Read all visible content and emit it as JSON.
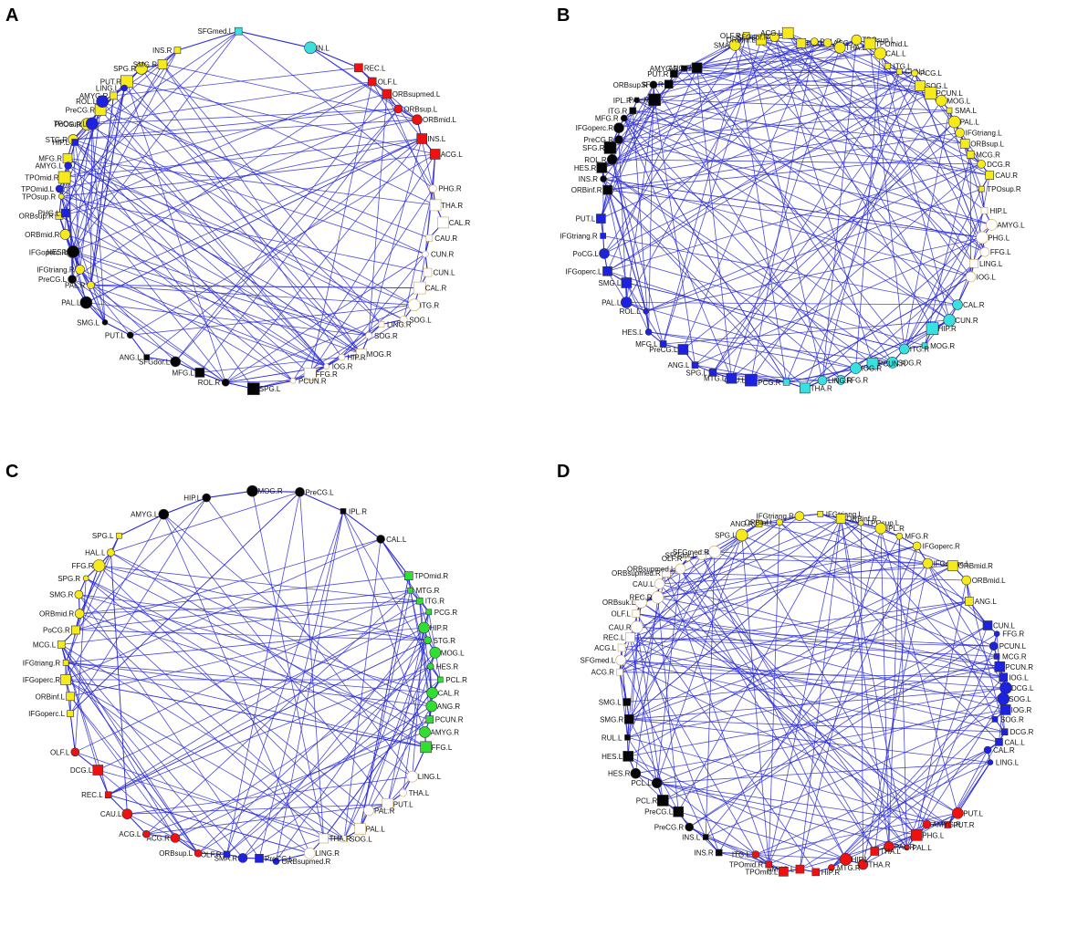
{
  "colors": {
    "edge": "#2b2bd6",
    "yellow": "#f7ea1a",
    "cyan": "#38e0e0",
    "red": "#f01010",
    "white": "#ffffff",
    "black": "#050505",
    "blue": "#1c22e0",
    "green": "#30e030",
    "node_stroke_white": "#c8a060"
  },
  "panels": [
    {
      "letter": "A",
      "labels": {
        "yellow": [
          "PAL.R",
          "IFGtriang.R",
          "IFGoperc.R",
          "ORBmid.R",
          "ORBsup.R",
          "TPOsup.R",
          "TPOmid.R",
          "MFG.R",
          "STG.R",
          "PoCG.R",
          "PreCG.R",
          "AMYG.R",
          "PUT.R",
          "SPG.R",
          "SMG.R",
          "INS.R"
        ],
        "cyan": [
          "SFGmed.L",
          "IN.L"
        ],
        "red": [
          "REC.L",
          "OLF.L",
          "ORBsupmed.L",
          "ORBsup.L",
          "ORBmid.L",
          "INS.L",
          "ACG.L"
        ],
        "white": [
          "PHG.R",
          "THA.R",
          "CAL.R",
          "CAU.R",
          "CUN.R",
          "CUN.L",
          "CAL.R",
          "ITG.R",
          "SOG.L",
          "LING.R",
          "SOG.R",
          "MOG.R",
          "HIP.R",
          "IOG.R",
          "FFG.R",
          "PCUN.R"
        ],
        "blue": [
          "PHG.L",
          "TPOmid.L",
          "AMYG.L",
          "HIP.L",
          "TPOsup.L",
          "ROL.L",
          "LING.L"
        ],
        "black": [
          "SPG.L",
          "ROL.R",
          "MFG.L",
          "SFGdor.L",
          "ANG.L",
          "PUT.L",
          "SMG.L",
          "PAL.L",
          "PreCG.L",
          "HES.L"
        ]
      }
    },
    {
      "letter": "B",
      "labels": {
        "yellow": [
          "SMA",
          "OLF.R",
          "ORBinf.L",
          "SFGdor.R",
          "ACG.L",
          "DCG.L",
          "PCL.R",
          "ACG.R",
          "THA.L",
          "TPOsup.L",
          "TPOmid.L",
          "CAL.L",
          "ITG.L",
          "CUN.L",
          "PCG.L",
          "SOG.L",
          "PCUN.L",
          "MOG.L",
          "SMA.L",
          "PAL.L",
          "IFGtriang.L",
          "ORBsup.L",
          "MCG.R",
          "DCG.R",
          "CAU.R",
          "TPOsup.R"
        ],
        "white": [
          "HIP.L",
          "AMYG.L",
          "PHG.L",
          "FFG.L",
          "LING.L",
          "IOG.L"
        ],
        "black": [
          "ORBinf.R",
          "INS.R",
          "HES.R",
          "ROL.R",
          "SFG.R",
          "PreCG.R",
          "IFGoperc.R",
          "MFG.R",
          "ITG.R",
          "IPL.R",
          "PAL.R",
          "ORBsup.R",
          "SFG.R",
          "PUT.R",
          "AMYG.R",
          "ANG.R"
        ],
        "blue": [
          "CAU.L",
          "MTG.L",
          "SPG.L",
          "ANG.L",
          "PreCG.L",
          "MFG.L",
          "HES.L",
          "ROL.L",
          "PAL.L",
          "SMG.L",
          "IFGoperc.L",
          "PoCG.L",
          "IFGtriang.R",
          "PUT.L"
        ],
        "cyan": [
          "CAL.R",
          "CUN.R",
          "HIP.R",
          "MOG.R",
          "ITG.R",
          "SOG.R",
          "PCUN.R",
          "IOG.R",
          "FFG.R",
          "LING.R",
          "THA.R",
          "PCG.R"
        ]
      }
    },
    {
      "letter": "C",
      "labels": {
        "black": [
          "AMYG.L",
          "HIP.L",
          "MOG.R",
          "PreCG.L",
          "IPL.R",
          "CAL.L"
        ],
        "yellow": [
          "IFGoperc.L",
          "ORBinf.L",
          "IFGoperc.R",
          "IFGtriang.R",
          "MCG.L",
          "PoCG.R",
          "ORBmid.R",
          "SMG.R",
          "SPG.R",
          "FFG.R",
          "HAL.L",
          "SPG.L"
        ],
        "green": [
          "TPOmid.R",
          "MTG.R",
          "ITG.R",
          "PCG.R",
          "HIP.R",
          "STG.R",
          "MOG.L",
          "HES.R",
          "PCL.R",
          "CAL.R",
          "ANG.R",
          "PCUN.R",
          "AMYG.R",
          "FFG.L"
        ],
        "red": [
          "ORBsup.L",
          "ACG.R",
          "ACG.L",
          "CAU.L",
          "REC.L",
          "DCG.L",
          "OLF.L"
        ],
        "blue": [
          "ORBsupmed.R",
          "PreCG.L",
          "SMA.R",
          "OLF.R"
        ],
        "white": [
          "LING.L",
          "THA.L",
          "PUT.L",
          "PAL.R",
          "PAL.L",
          "SOG.L",
          "THA.R",
          "LING.R"
        ]
      }
    },
    {
      "letter": "D",
      "labels": {
        "yellow": [
          "SPG.L",
          "ANG.R",
          "ORBinf.L",
          "IFGtriang.R",
          "IFGtriang.L",
          "ORBinf.R",
          "TPOsup.L",
          "IPL.R",
          "MFG.R",
          "IFGoperc.R",
          "IFGoperc.L",
          "ORBmid.R",
          "ORBmid.L",
          "ANG.L"
        ],
        "white": [
          "ACG.R",
          "SFGmed.L",
          "ACG.L",
          "REC.L",
          "CAU.R",
          "OLF.L",
          "ORBsuk.L",
          "REC.R",
          "CAU.L",
          "ORBsupmed.R",
          "ORBsupmed.L",
          "OLF.R",
          "SFGdor.L",
          "SFGmed.R"
        ],
        "blue": [
          "CUN.L",
          "FFG.R",
          "PCUN.L",
          "MCG.R",
          "PCUN.R",
          "IOG.L",
          "DCG.L",
          "SOG.L",
          "IOG.R",
          "SOG.R",
          "DCG.R",
          "CAL.L",
          "CAL.R",
          "LING.L"
        ],
        "black": [
          "INS.R",
          "INS.L",
          "PreCG.R",
          "PreCG.L",
          "PCL.R",
          "PCL.L",
          "HES.R",
          "HES.L",
          "RUL.L",
          "SMG.R",
          "SMG.L"
        ],
        "red": [
          "PUT.L",
          "PUT.R",
          "AMYG.R",
          "PHG.L",
          "PAL.L",
          "PAL.R",
          "THA.L",
          "THA.R",
          "HIP.L",
          "MTG.R",
          "HIP.R",
          "AMYG.L",
          "TPOmid.L",
          "TPOmid.R",
          "ITG.L"
        ]
      }
    }
  ]
}
